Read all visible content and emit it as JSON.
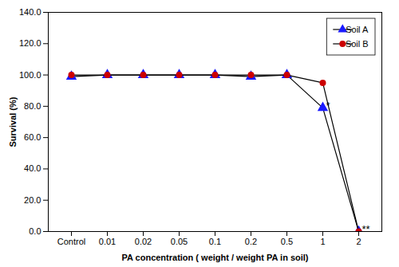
{
  "chart_data": {
    "type": "line",
    "xlabel": "PA concentration ( weight / weight PA in soil)",
    "ylabel": "Survival (%)",
    "categories": [
      "Control",
      "0.01",
      "0.02",
      "0.05",
      "0.1",
      "0.2",
      "0.5",
      "1",
      "2"
    ],
    "color": "#000000",
    "series": [
      {
        "name": "Soil A",
        "color": "#1a1aff",
        "marker": "triangle",
        "values": [
          99.0,
          100.0,
          100.0,
          100.0,
          100.0,
          99.0,
          100.0,
          79.0,
          0.0
        ]
      },
      {
        "name": "Soil B",
        "color": "#cc0000",
        "marker": "circle",
        "values": [
          100.0,
          100.0,
          100.0,
          100.0,
          100.0,
          100.0,
          100.0,
          95.0,
          0.0
        ]
      }
    ],
    "ylim": [
      0.0,
      140.0
    ],
    "yticks": [
      {
        "value": 0.0,
        "label": "0.0"
      },
      {
        "value": 20.0,
        "label": "20.0"
      },
      {
        "value": 40.0,
        "label": "40.0"
      },
      {
        "value": 60.0,
        "label": "60.0"
      },
      {
        "value": 80.0,
        "label": "80.0"
      },
      {
        "value": 100.0,
        "label": "100.0"
      },
      {
        "value": 120.0,
        "label": "120.0"
      },
      {
        "value": 140.0,
        "label": "140.0"
      }
    ],
    "grid": false,
    "legend": "upper right",
    "annotations": [
      {
        "text": "*",
        "x": "1",
        "y": 78.0
      },
      {
        "text": "**",
        "x": "2",
        "y": -1.0
      }
    ]
  }
}
